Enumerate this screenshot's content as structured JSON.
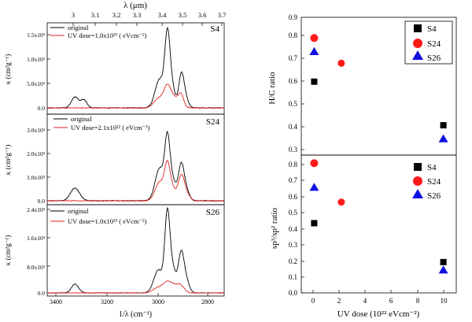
{
  "chart_data": [
    {
      "type": "line",
      "id": "S4",
      "panel_label": "S4",
      "top_axis": {
        "label": "λ (μm)",
        "ticks": [
          "3",
          "3.1",
          "3.2",
          "3.3",
          "3.4",
          "3.5",
          "3.6",
          "3.7"
        ]
      },
      "ylabel": "κ (cm²g⁻¹)",
      "ytick_labels": [
        "0.0",
        "5.0x10²",
        "1.0x10³",
        "1.5x10³"
      ],
      "ylim": [
        -80,
        1750
      ],
      "xlim": [
        3400,
        2700
      ],
      "legend": [
        "original",
        "UV dose=1.0x10²³ ( eVcm⁻²)"
      ],
      "series": [
        {
          "name": "original",
          "color": "#000000",
          "peaks": [
            {
              "x": 3290,
              "h": 230,
              "w": 14
            },
            {
              "x": 3255,
              "h": 170,
              "w": 12
            },
            {
              "x": 2955,
              "h": 600,
              "w": 18
            },
            {
              "x": 2925,
              "h": 1250,
              "w": 10
            },
            {
              "x": 2910,
              "h": 500,
              "w": 14
            },
            {
              "x": 2870,
              "h": 630,
              "w": 10
            },
            {
              "x": 2855,
              "h": 230,
              "w": 12
            }
          ]
        },
        {
          "name": "UV dose=1.0x10²³ ( eVcm⁻²)",
          "color": "#e02020",
          "peaks": [
            {
              "x": 2960,
              "h": 200,
              "w": 18
            },
            {
              "x": 2925,
              "h": 420,
              "w": 14
            },
            {
              "x": 2895,
              "h": 200,
              "w": 18
            },
            {
              "x": 2870,
              "h": 230,
              "w": 10
            }
          ]
        }
      ]
    },
    {
      "type": "line",
      "id": "S24",
      "panel_label": "S24",
      "ylabel": "κ (cm²g⁻¹)",
      "ytick_labels": [
        "0.0",
        "1.0x10³",
        "2.0x10³",
        "3.0x10³"
      ],
      "ylim": [
        -150,
        3650
      ],
      "xlim": [
        3400,
        2700
      ],
      "legend": [
        "original",
        "UV dose=2.1x10²² ( eVcm⁻²)"
      ],
      "series": [
        {
          "name": "original",
          "color": "#000000",
          "peaks": [
            {
              "x": 3290,
              "h": 550,
              "w": 18
            },
            {
              "x": 2955,
              "h": 1400,
              "w": 18
            },
            {
              "x": 2925,
              "h": 2300,
              "w": 10
            },
            {
              "x": 2905,
              "h": 900,
              "w": 14
            },
            {
              "x": 2870,
              "h": 1500,
              "w": 11
            },
            {
              "x": 2850,
              "h": 450,
              "w": 12
            }
          ]
        },
        {
          "name": "UV dose=2.1x10²² ( eVcm⁻²)",
          "color": "#e02020",
          "peaks": [
            {
              "x": 2955,
              "h": 800,
              "w": 18
            },
            {
              "x": 2925,
              "h": 1350,
              "w": 11
            },
            {
              "x": 2905,
              "h": 500,
              "w": 14
            },
            {
              "x": 2870,
              "h": 1000,
              "w": 12
            },
            {
              "x": 2850,
              "h": 300,
              "w": 14
            }
          ]
        }
      ]
    },
    {
      "type": "line",
      "id": "S26",
      "panel_label": "S26",
      "ylabel": "κ (cm²g⁻¹)",
      "ytick_labels": [
        "0.0",
        "8.0x10²",
        "1.6x10³",
        "2.4x10³"
      ],
      "ylim": [
        -100,
        2450
      ],
      "xlim": [
        3400,
        2700
      ],
      "xlabel": "1/λ (cm⁻¹)",
      "xtick_labels": [
        "3400",
        "3200",
        "3000",
        "2800"
      ],
      "legend": [
        "original",
        "UV dose=1.0x10²³ ( eVcm⁻²)"
      ],
      "series": [
        {
          "name": "original",
          "color": "#000000",
          "peaks": [
            {
              "x": 3290,
              "h": 250,
              "w": 14
            },
            {
              "x": 2960,
              "h": 650,
              "w": 18
            },
            {
              "x": 2925,
              "h": 2050,
              "w": 10
            },
            {
              "x": 2905,
              "h": 700,
              "w": 14
            },
            {
              "x": 2870,
              "h": 1100,
              "w": 11
            },
            {
              "x": 2850,
              "h": 330,
              "w": 12
            }
          ]
        },
        {
          "name": "UV dose=1.0x10²³ ( eVcm⁻²)",
          "color": "#e02020",
          "peaks": [
            {
              "x": 2960,
              "h": 150,
              "w": 20
            },
            {
              "x": 2925,
              "h": 260,
              "w": 16
            },
            {
              "x": 2895,
              "h": 180,
              "w": 18
            },
            {
              "x": 2870,
              "h": 160,
              "w": 14
            }
          ]
        }
      ]
    },
    {
      "type": "scatter",
      "id": "HC",
      "ylabel": "H/C ratio",
      "ylim": [
        0.3,
        0.9
      ],
      "yticks": [
        0.3,
        0.4,
        0.5,
        0.6,
        0.7,
        0.8,
        0.9
      ],
      "ytick_labels": [
        "0.3",
        "0.4",
        "0.5",
        "0.6",
        "0.7",
        "0.8",
        "0.9"
      ],
      "xlim": [
        -1,
        11
      ],
      "legend": [
        "S4",
        "S24",
        "S26"
      ],
      "series": [
        {
          "name": "S4",
          "marker": "square",
          "color": "#000000",
          "points": [
            [
              0,
              0.62
            ],
            [
              10,
              0.43
            ]
          ]
        },
        {
          "name": "S24",
          "marker": "circle",
          "color": "#ff1a1a",
          "points": [
            [
              0,
              0.81
            ],
            [
              2.1,
              0.7
            ]
          ]
        },
        {
          "name": "S26",
          "marker": "triangle",
          "color": "#1010e0",
          "points": [
            [
              0,
              0.75
            ],
            [
              10,
              0.37
            ]
          ]
        }
      ]
    },
    {
      "type": "scatter",
      "id": "SP",
      "ylabel": "sp³/sp² ratio",
      "ylim": [
        0.0,
        0.85
      ],
      "yticks": [
        0.0,
        0.1,
        0.2,
        0.3,
        0.4,
        0.5,
        0.6,
        0.7,
        0.8
      ],
      "ytick_labels": [
        "0.0",
        "0.1",
        "0.2",
        "0.3",
        "0.4",
        "0.5",
        "0.6",
        "0.7",
        "0.8"
      ],
      "xlim": [
        -1,
        11
      ],
      "xticks": [
        0,
        2,
        4,
        6,
        8,
        10
      ],
      "xtick_labels": [
        "0",
        "2",
        "4",
        "6",
        "8",
        "10"
      ],
      "xlabel": "UV dose (10²² eVcm⁻²)",
      "legend": [
        "S4",
        "S24",
        "S26"
      ],
      "series": [
        {
          "name": "S4",
          "marker": "square",
          "color": "#000000",
          "points": [
            [
              0,
              0.43
            ],
            [
              10,
              0.19
            ]
          ]
        },
        {
          "name": "S24",
          "marker": "circle",
          "color": "#ff1a1a",
          "points": [
            [
              0,
              0.8
            ],
            [
              2.1,
              0.56
            ]
          ]
        },
        {
          "name": "S26",
          "marker": "triangle",
          "color": "#1010e0",
          "points": [
            [
              0,
              0.65
            ],
            [
              10,
              0.14
            ]
          ]
        }
      ]
    }
  ]
}
